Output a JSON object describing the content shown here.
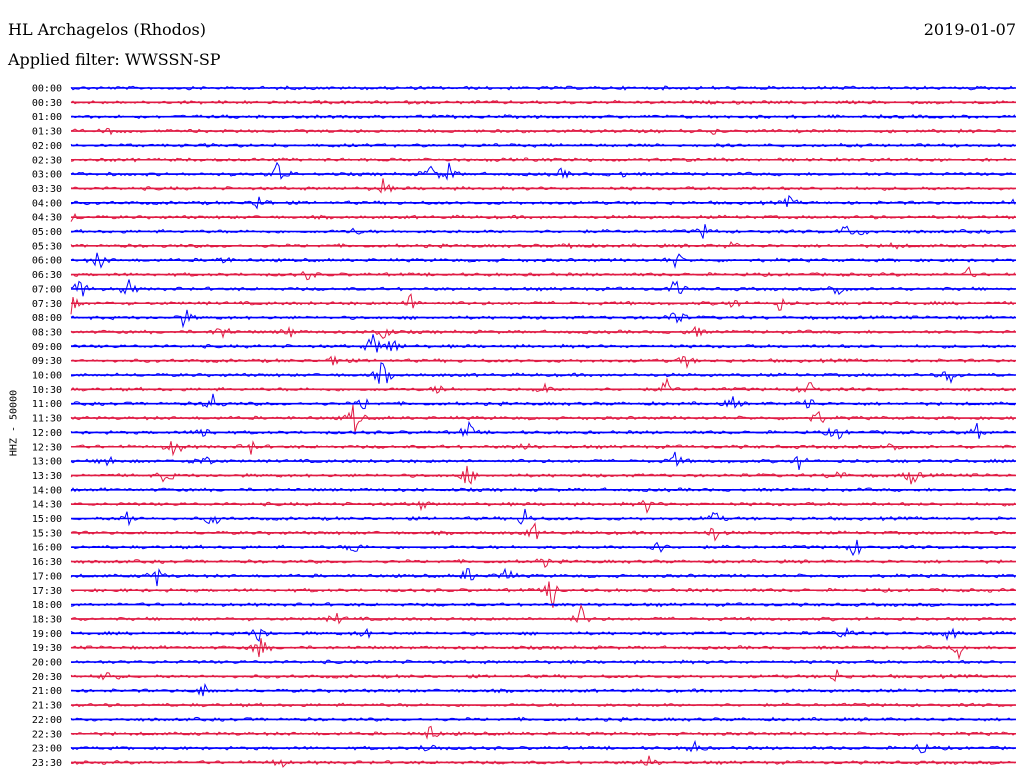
{
  "header": {
    "station": "HL Archagelos (Rhodos)",
    "date": "2019-01-07",
    "filter": "Applied filter: WWSSN-SP"
  },
  "chart_data": {
    "type": "line",
    "title": "HL Archagelos (Rhodos)",
    "ylabel": "HHZ - 50000",
    "xlabel": "",
    "colors": [
      "#0000ff",
      "#e01b44"
    ],
    "grid": false,
    "legend": "none",
    "rows": [
      "00:00",
      "00:30",
      "01:00",
      "01:30",
      "02:00",
      "02:30",
      "03:00",
      "03:30",
      "04:00",
      "04:30",
      "05:00",
      "05:30",
      "06:00",
      "06:30",
      "07:00",
      "07:30",
      "08:00",
      "08:30",
      "09:00",
      "09:30",
      "10:00",
      "10:30",
      "11:00",
      "11:30",
      "12:00",
      "12:30",
      "13:00",
      "13:30",
      "14:00",
      "14:30",
      "15:00",
      "15:30",
      "16:00",
      "16:30",
      "17:00",
      "17:30",
      "18:00",
      "18:30",
      "19:00",
      "19:30",
      "20:00",
      "20:30",
      "21:00",
      "21:30",
      "22:00",
      "22:30",
      "23:00",
      "23:30"
    ],
    "events": [
      [
        0,
        0.32,
        1
      ],
      [
        3,
        0.04,
        3
      ],
      [
        3,
        0.68,
        2
      ],
      [
        5,
        0.87,
        1
      ],
      [
        6,
        0.22,
        18
      ],
      [
        6,
        0.38,
        12
      ],
      [
        6,
        0.4,
        10
      ],
      [
        6,
        0.52,
        6
      ],
      [
        6,
        0.58,
        5
      ],
      [
        7,
        0.33,
        10
      ],
      [
        8,
        0.2,
        12
      ],
      [
        8,
        0.76,
        6
      ],
      [
        8,
        1.0,
        5
      ],
      [
        9,
        0.0,
        6
      ],
      [
        10,
        0.3,
        4
      ],
      [
        10,
        0.67,
        8
      ],
      [
        10,
        0.82,
        8
      ],
      [
        10,
        0.84,
        5
      ],
      [
        11,
        0.53,
        5
      ],
      [
        11,
        0.7,
        5
      ],
      [
        11,
        0.87,
        4
      ],
      [
        12,
        0.03,
        12
      ],
      [
        12,
        0.16,
        5
      ],
      [
        12,
        0.64,
        10
      ],
      [
        13,
        0.25,
        6
      ],
      [
        13,
        0.95,
        6
      ],
      [
        14,
        0.01,
        14
      ],
      [
        14,
        0.06,
        12
      ],
      [
        14,
        0.64,
        12
      ],
      [
        14,
        0.81,
        14
      ],
      [
        15,
        0.0,
        10
      ],
      [
        15,
        0.36,
        10
      ],
      [
        15,
        0.7,
        6
      ],
      [
        15,
        0.75,
        8
      ],
      [
        16,
        0.12,
        12
      ],
      [
        16,
        0.64,
        14
      ],
      [
        17,
        0.16,
        12
      ],
      [
        17,
        0.23,
        8
      ],
      [
        17,
        0.33,
        12
      ],
      [
        17,
        0.66,
        8
      ],
      [
        18,
        0.32,
        16
      ],
      [
        18,
        0.34,
        12
      ],
      [
        19,
        0.28,
        10
      ],
      [
        19,
        0.65,
        8
      ],
      [
        20,
        0.33,
        18
      ],
      [
        20,
        0.93,
        10
      ],
      [
        21,
        0.39,
        6
      ],
      [
        21,
        0.5,
        6
      ],
      [
        21,
        0.63,
        10
      ],
      [
        21,
        0.78,
        14
      ],
      [
        22,
        0.15,
        12
      ],
      [
        22,
        0.31,
        8
      ],
      [
        22,
        0.7,
        8
      ],
      [
        22,
        0.78,
        10
      ],
      [
        23,
        0.3,
        18
      ],
      [
        23,
        0.79,
        10
      ],
      [
        24,
        0.14,
        10
      ],
      [
        24,
        0.42,
        12
      ],
      [
        24,
        0.81,
        12
      ],
      [
        24,
        0.96,
        14
      ],
      [
        25,
        0.11,
        14
      ],
      [
        25,
        0.19,
        8
      ],
      [
        25,
        0.48,
        6
      ],
      [
        25,
        0.87,
        10
      ],
      [
        26,
        0.04,
        10
      ],
      [
        26,
        0.14,
        12
      ],
      [
        26,
        0.64,
        10
      ],
      [
        26,
        0.77,
        8
      ],
      [
        27,
        0.1,
        10
      ],
      [
        27,
        0.42,
        14
      ],
      [
        27,
        0.81,
        10
      ],
      [
        27,
        0.89,
        12
      ],
      [
        29,
        0.37,
        6
      ],
      [
        29,
        0.61,
        8
      ],
      [
        30,
        0.06,
        10
      ],
      [
        30,
        0.15,
        10
      ],
      [
        30,
        0.48,
        12
      ],
      [
        30,
        0.68,
        10
      ],
      [
        31,
        0.49,
        10
      ],
      [
        31,
        0.68,
        10
      ],
      [
        32,
        0.3,
        8
      ],
      [
        32,
        0.62,
        10
      ],
      [
        32,
        0.83,
        12
      ],
      [
        33,
        0.5,
        6
      ],
      [
        34,
        0.09,
        12
      ],
      [
        34,
        0.42,
        10
      ],
      [
        34,
        0.46,
        12
      ],
      [
        35,
        0.51,
        20
      ],
      [
        37,
        0.28,
        8
      ],
      [
        37,
        0.54,
        14
      ],
      [
        38,
        0.2,
        14
      ],
      [
        38,
        0.31,
        8
      ],
      [
        38,
        0.82,
        10
      ],
      [
        38,
        0.93,
        10
      ],
      [
        39,
        0.2,
        16
      ],
      [
        39,
        0.94,
        10
      ],
      [
        41,
        0.04,
        10
      ],
      [
        41,
        0.81,
        8
      ],
      [
        42,
        0.14,
        8
      ],
      [
        45,
        0.38,
        10
      ],
      [
        46,
        0.38,
        10
      ],
      [
        46,
        0.66,
        8
      ],
      [
        46,
        0.9,
        8
      ],
      [
        47,
        0.61,
        10
      ],
      [
        47,
        0.22,
        8
      ]
    ]
  }
}
